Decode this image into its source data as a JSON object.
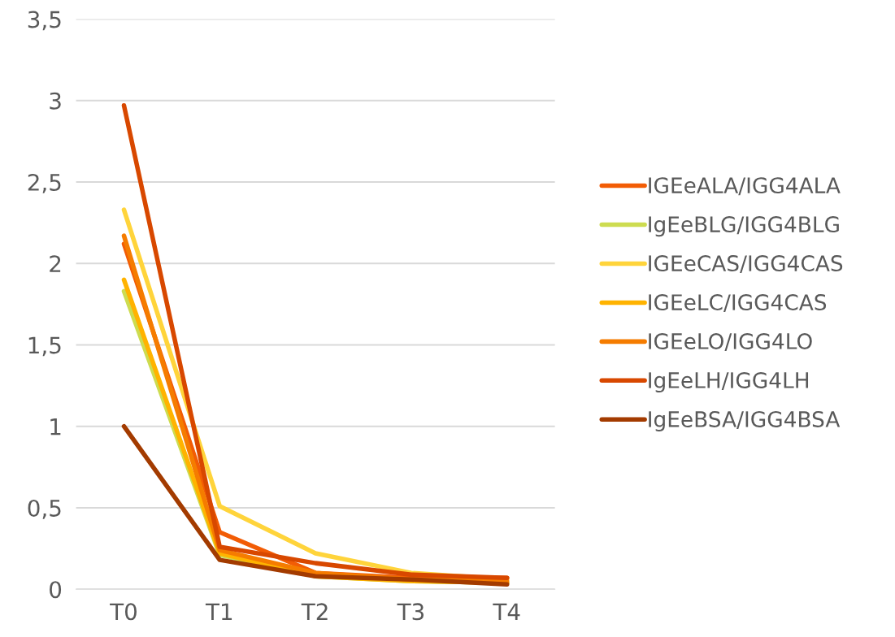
{
  "chart_data": {
    "type": "line",
    "categories": [
      "T0",
      "T1",
      "T2",
      "T3",
      "T4"
    ],
    "series": [
      {
        "name": "IGEeALA/IGG4ALA",
        "color": "#f25c05",
        "values": [
          2.12,
          0.35,
          0.1,
          0.07,
          0.07
        ]
      },
      {
        "name": "IgEeBLG/IGG4BLG",
        "color": "#cddc50",
        "values": [
          1.83,
          0.21,
          0.08,
          0.05,
          0.04
        ]
      },
      {
        "name": "IGEeCAS/IGG4CAS",
        "color": "#ffd43b",
        "values": [
          2.33,
          0.51,
          0.22,
          0.1,
          0.06
        ]
      },
      {
        "name": "IGEeLC/IGG4CAS",
        "color": "#ffb300",
        "values": [
          1.9,
          0.22,
          0.08,
          0.05,
          0.04
        ]
      },
      {
        "name": "IGEeLO/IGG4LO",
        "color": "#f57c00",
        "values": [
          2.17,
          0.24,
          0.1,
          0.06,
          0.05
        ]
      },
      {
        "name": "IgEeLH/IGG4LH",
        "color": "#d84800",
        "values": [
          2.97,
          0.26,
          0.16,
          0.09,
          0.07
        ]
      },
      {
        "name": "IgEeBSA/IGG4BSA",
        "color": "#a33b00",
        "values": [
          1.0,
          0.18,
          0.08,
          0.06,
          0.03
        ]
      }
    ],
    "ylim": [
      0,
      3.5
    ],
    "yticks": [
      {
        "value": 0,
        "label": "0"
      },
      {
        "value": 0.5,
        "label": "0,5"
      },
      {
        "value": 1,
        "label": "1"
      },
      {
        "value": 1.5,
        "label": "1,5"
      },
      {
        "value": 2,
        "label": "2"
      },
      {
        "value": 2.5,
        "label": "2,5"
      },
      {
        "value": 3,
        "label": "3"
      },
      {
        "value": 3.5,
        "label": "3,5"
      }
    ],
    "grid": "y",
    "legend": "right",
    "marker": "none",
    "line_style": "solid"
  }
}
